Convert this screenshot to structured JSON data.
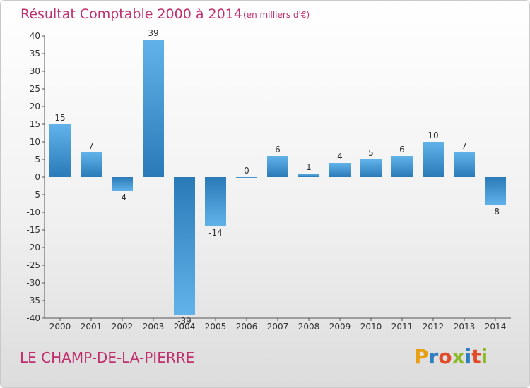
{
  "header": {
    "title": "Résultat Comptable 2000 à 2014",
    "subtitle": "(en milliers d'€)"
  },
  "footer": {
    "place": "LE CHAMP-DE-LA-PIERRE",
    "logo": "Proxiti",
    "logo_colors": [
      "#e8a013",
      "#2e7fc0",
      "#e14b2a",
      "#8dbb2a",
      "#2e7fc0",
      "#e14b2a",
      "#8dbb2a"
    ]
  },
  "colors": {
    "accent": "#c0306e",
    "bar_light": "#62b2ea",
    "bar_dark": "#2a7ab8"
  },
  "chart_data": {
    "type": "bar",
    "title": "Résultat Comptable 2000 à 2014",
    "subtitle": "(en milliers d'€)",
    "xlabel": "",
    "ylabel": "",
    "categories": [
      "2000",
      "2001",
      "2002",
      "2003",
      "2004",
      "2005",
      "2006",
      "2007",
      "2008",
      "2009",
      "2010",
      "2011",
      "2012",
      "2013",
      "2014"
    ],
    "values": [
      15,
      7,
      -4,
      39,
      -39,
      -14,
      0,
      6,
      1,
      4,
      5,
      6,
      10,
      7,
      -8
    ],
    "data_labels": [
      "15",
      "7",
      "-4",
      "39",
      "-39",
      "-14",
      "0",
      "6",
      "1",
      "4",
      "5",
      "6",
      "10",
      "7",
      "-8"
    ],
    "ylim": [
      -40,
      40
    ],
    "yticks": [
      40,
      35,
      30,
      25,
      20,
      15,
      10,
      5,
      0,
      -5,
      -10,
      -15,
      -20,
      -25,
      -30,
      -35,
      -40
    ],
    "grid": false,
    "legend": "none"
  }
}
